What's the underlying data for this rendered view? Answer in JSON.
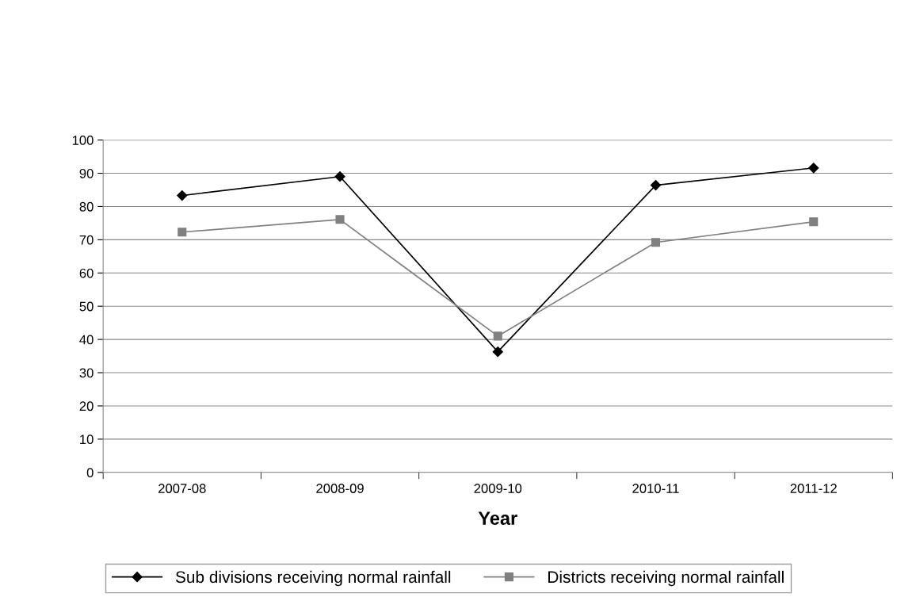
{
  "chart_data": {
    "type": "line",
    "xlabel": "Year",
    "categories": [
      "2007-08",
      "2008-09",
      "2009-10",
      "2010-11",
      "2011-12"
    ],
    "series": [
      {
        "name": "Sub divisions receiving normal rainfall",
        "color": "#000000",
        "marker": "diamond",
        "values": [
          83.3,
          89.0,
          36.3,
          86.4,
          91.6
        ]
      },
      {
        "name": "Districts receiving normal rainfall",
        "color": "#808080",
        "marker": "square",
        "values": [
          72.3,
          76.1,
          41.0,
          69.2,
          75.4
        ]
      }
    ],
    "ylim": [
      0,
      100
    ],
    "yticks": [
      0,
      10,
      20,
      30,
      40,
      50,
      60,
      70,
      80,
      90,
      100
    ],
    "grid": "y",
    "legend": "bottom",
    "line_style": "solid"
  }
}
